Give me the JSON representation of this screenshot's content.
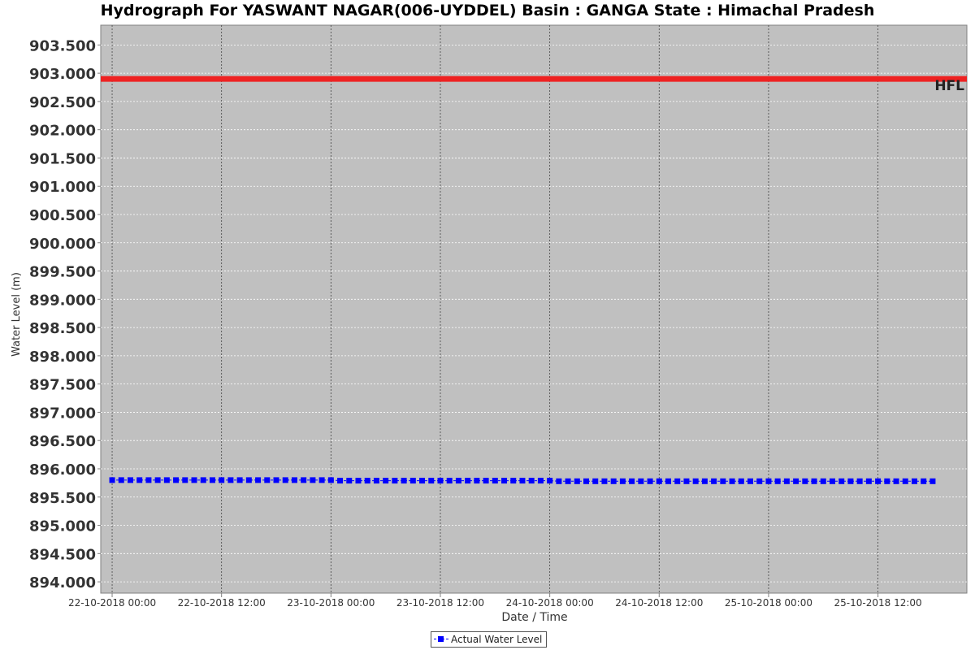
{
  "chart_data": {
    "type": "line",
    "title": "Hydrograph For YASWANT NAGAR(006-UYDDEL) Basin : GANGA State : Himachal Pradesh",
    "xlabel": "Date / Time",
    "ylabel": "Water Level (m)",
    "ylim": [
      893.8,
      903.85
    ],
    "y_ticks": [
      "894.000",
      "894.500",
      "895.000",
      "895.500",
      "896.000",
      "896.500",
      "897.000",
      "897.500",
      "898.000",
      "898.500",
      "899.000",
      "899.500",
      "900.000",
      "900.500",
      "901.000",
      "901.500",
      "902.000",
      "902.500",
      "903.000",
      "903.500"
    ],
    "x_range_hours": [
      -5,
      375
    ],
    "x_ticks": [
      {
        "hour": 0,
        "label": "22-10-2018 00:00"
      },
      {
        "hour": 48,
        "label": "22-10-2018 12:00"
      },
      {
        "hour": 96,
        "label": "23-10-2018 00:00"
      },
      {
        "hour": 144,
        "label": "23-10-2018 12:00"
      },
      {
        "hour": 192,
        "label": "24-10-2018 00:00"
      },
      {
        "hour": 240,
        "label": "24-10-2018 12:00"
      },
      {
        "hour": 288,
        "label": "25-10-2018 00:00"
      },
      {
        "hour": 336,
        "label": "25-10-2018 12:00"
      }
    ],
    "grid": true,
    "legend": "bottom-center",
    "hfl": {
      "label": "HFL",
      "value": 902.9,
      "color": "#ee2222"
    },
    "series": [
      {
        "name": "Actual Water Level",
        "color": "#0000ff",
        "start_hour": 0,
        "step_hours": 4,
        "values": [
          895.8,
          895.8,
          895.8,
          895.8,
          895.8,
          895.8,
          895.8,
          895.8,
          895.8,
          895.8,
          895.8,
          895.8,
          895.8,
          895.8,
          895.8,
          895.8,
          895.8,
          895.8,
          895.8,
          895.8,
          895.8,
          895.8,
          895.8,
          895.8,
          895.8,
          895.79,
          895.79,
          895.79,
          895.79,
          895.79,
          895.79,
          895.79,
          895.79,
          895.79,
          895.79,
          895.79,
          895.79,
          895.79,
          895.79,
          895.79,
          895.79,
          895.79,
          895.79,
          895.79,
          895.79,
          895.79,
          895.79,
          895.79,
          895.79,
          895.78,
          895.78,
          895.78,
          895.78,
          895.78,
          895.78,
          895.78,
          895.78,
          895.78,
          895.78,
          895.78,
          895.78,
          895.78,
          895.78,
          895.78,
          895.78,
          895.78,
          895.78,
          895.78,
          895.78,
          895.78,
          895.78,
          895.78,
          895.78,
          895.78,
          895.78,
          895.78,
          895.78,
          895.78,
          895.78,
          895.78,
          895.78,
          895.78,
          895.78,
          895.78,
          895.78,
          895.78,
          895.78,
          895.78,
          895.78,
          895.78,
          895.78
        ]
      }
    ]
  }
}
